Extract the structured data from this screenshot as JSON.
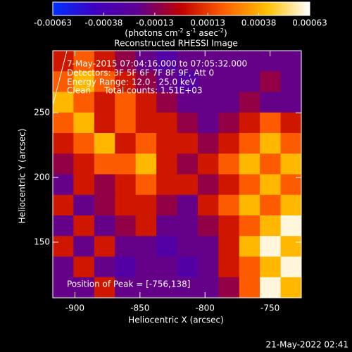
{
  "chart_data": {
    "type": "heatmap",
    "title": "Reconstructed RHESSI Image",
    "xlabel": "Heliocentric X (arcsec)",
    "ylabel": "Heliocentric Y (arcsec)",
    "xlim": [
      -917,
      -726
    ],
    "xticks": [
      -900,
      -850,
      -800,
      -750
    ],
    "ylim": [
      107,
      298
    ],
    "yticks": [
      150,
      200,
      250
    ],
    "zlim": [
      -0.00063,
      0.00063
    ],
    "zticks": [
      -0.00063,
      -0.00038,
      -0.00013,
      0.00013,
      0.00038,
      0.00063
    ],
    "colorbar_label": [
      "(photons cm",
      "-2",
      " s",
      "-1",
      " asec",
      "-2",
      ")"
    ],
    "colormap": [
      "#0030ff",
      "#4000c0",
      "#600090",
      "#c00000",
      "#ff6000",
      "#ffc000",
      "#ffffff"
    ],
    "annotations": [
      "7-May-2015 07:04:16.000 to 07:05:32.000",
      "Detectors: 3F 5F 6F 7F 8F 9F, Att 0",
      "Energy Range: 12.0 - 25.0 keV",
      "Clean     Total counts: 1.51E+03"
    ],
    "peak_label": "Position of Peak = [-756,138]",
    "timestamp": "21-May-2022 02:41",
    "z": [
      [
        5e-05,
        0.0002,
        5e-05,
        -0.0001,
        -0.0002,
        -0.0003,
        -0.0002,
        -0.0002,
        -0.0002,
        -0.0002,
        -0.0002,
        -0.0002
      ],
      [
        0.0002,
        0.0004,
        0.0002,
        5e-05,
        -0.0001,
        -0.0002,
        -0.0003,
        -0.0002,
        -0.0002,
        -0.0002,
        -0.0001,
        -0.0002
      ],
      [
        0.0004,
        0.0002,
        5e-05,
        0.0002,
        5e-05,
        -0.0001,
        -0.0002,
        -0.0002,
        -0.0002,
        -0.0001,
        -0.0002,
        -0.0002
      ],
      [
        0.0002,
        0.0004,
        5e-05,
        0.0002,
        5e-05,
        5e-05,
        -0.0001,
        -0.0002,
        -0.0001,
        5e-05,
        0.0002,
        5e-05
      ],
      [
        5e-05,
        0.0002,
        0.0004,
        5e-05,
        0.0002,
        5e-05,
        5e-05,
        -0.0001,
        5e-05,
        0.0002,
        0.0004,
        0.0002
      ],
      [
        -0.0001,
        5e-05,
        0.0002,
        0.0002,
        0.0004,
        5e-05,
        -0.0001,
        5e-05,
        0.0002,
        0.0004,
        0.0002,
        0.0004
      ],
      [
        -0.0002,
        5e-05,
        -0.0001,
        5e-05,
        0.0002,
        5e-05,
        5e-05,
        -0.0001,
        5e-05,
        0.0002,
        0.0004,
        0.0002
      ],
      [
        5e-05,
        -0.0002,
        -0.0001,
        5e-05,
        5e-05,
        -0.0001,
        -0.0002,
        5e-05,
        0.0002,
        0.0004,
        0.0002,
        0.0004
      ],
      [
        -0.0002,
        5e-05,
        -0.0002,
        -0.0001,
        5e-05,
        -0.0002,
        -0.0002,
        -0.0001,
        5e-05,
        0.0002,
        0.0004,
        0.0006
      ],
      [
        5e-05,
        -0.0002,
        5e-05,
        -0.0002,
        -0.0002,
        -0.0003,
        -0.0002,
        -0.0002,
        5e-05,
        0.0004,
        0.0006,
        0.0004
      ],
      [
        -0.0002,
        5e-05,
        -0.0002,
        -0.0003,
        -0.0002,
        -0.0002,
        -0.0003,
        -0.0002,
        5e-05,
        0.0002,
        0.0004,
        0.0006
      ],
      [
        -0.0002,
        -0.0002,
        5e-05,
        -0.0002,
        -0.0002,
        -0.0002,
        -0.0002,
        -0.0002,
        -0.0001,
        0.0002,
        0.0006,
        0.0004
      ]
    ]
  }
}
